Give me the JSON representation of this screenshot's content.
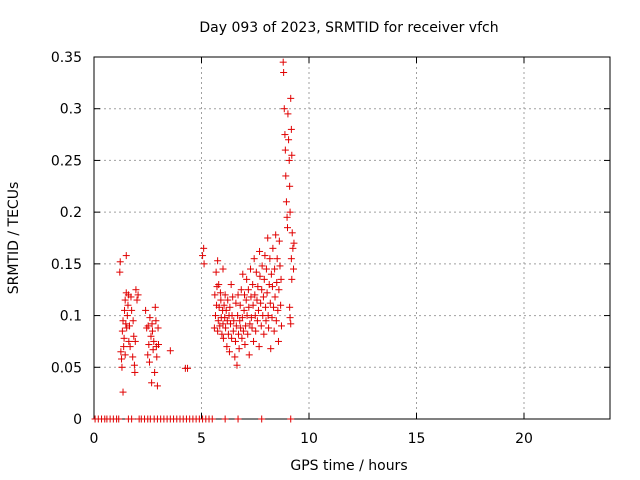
{
  "chart_data": {
    "type": "scatter",
    "title": "Day 093 of 2023, SRMTID for receiver vfch",
    "xlabel": "GPS time / hours",
    "ylabel": "SRMTID / TECUs",
    "xlim": [
      0,
      24
    ],
    "ylim": [
      0,
      0.35
    ],
    "xticks": [
      "0",
      "5",
      "10",
      "15",
      "20"
    ],
    "yticks": [
      "0",
      "0.05",
      "0.1",
      "0.15",
      "0.2",
      "0.25",
      "0.3",
      "0.35"
    ],
    "grid": true,
    "marker": "plus",
    "color": "#e00000",
    "points": [
      [
        0.05,
        0
      ],
      [
        0.2,
        0
      ],
      [
        0.35,
        0
      ],
      [
        0.5,
        0
      ],
      [
        0.6,
        0
      ],
      [
        0.75,
        0
      ],
      [
        0.9,
        0
      ],
      [
        1.05,
        0
      ],
      [
        1.15,
        0
      ],
      [
        1.2,
        0.142
      ],
      [
        1.22,
        0.152
      ],
      [
        1.25,
        0.065
      ],
      [
        1.28,
        0.058
      ],
      [
        1.3,
        0.05
      ],
      [
        1.32,
        0.085
      ],
      [
        1.35,
        0.095
      ],
      [
        1.35,
        0.026
      ],
      [
        1.38,
        0.07
      ],
      [
        1.4,
        0.078
      ],
      [
        1.42,
        0.105
      ],
      [
        1.45,
        0.115
      ],
      [
        1.45,
        0.062
      ],
      [
        1.48,
        0.092
      ],
      [
        1.5,
        0.158
      ],
      [
        1.5,
        0.122
      ],
      [
        1.52,
        0.088
      ],
      [
        1.55,
        0.1
      ],
      [
        1.58,
        0.11
      ],
      [
        1.6,
        0.12
      ],
      [
        1.62,
        0.075
      ],
      [
        1.65,
        0.09
      ],
      [
        1.68,
        0.07
      ],
      [
        1.72,
        0.118
      ],
      [
        1.75,
        0.105
      ],
      [
        1.8,
        0.06
      ],
      [
        1.82,
        0.095
      ],
      [
        1.85,
        0.08
      ],
      [
        1.88,
        0.052
      ],
      [
        1.9,
        0.045
      ],
      [
        1.92,
        0.075
      ],
      [
        1.95,
        0.125
      ],
      [
        2.0,
        0.115
      ],
      [
        2.05,
        0.12
      ],
      [
        1.6,
        0
      ],
      [
        1.75,
        0
      ],
      [
        2.1,
        0
      ],
      [
        2.2,
        0
      ],
      [
        2.35,
        0
      ],
      [
        2.5,
        0
      ],
      [
        2.62,
        0
      ],
      [
        2.8,
        0
      ],
      [
        2.95,
        0
      ],
      [
        2.4,
        0.105
      ],
      [
        2.45,
        0.088
      ],
      [
        2.5,
        0.062
      ],
      [
        2.52,
        0.09
      ],
      [
        2.55,
        0.072
      ],
      [
        2.58,
        0.055
      ],
      [
        2.6,
        0.098
      ],
      [
        2.65,
        0.08
      ],
      [
        2.68,
        0.035
      ],
      [
        2.7,
        0.092
      ],
      [
        2.72,
        0.085
      ],
      [
        2.75,
        0.067
      ],
      [
        2.78,
        0.075
      ],
      [
        2.82,
        0.045
      ],
      [
        2.85,
        0.108
      ],
      [
        2.88,
        0.095
      ],
      [
        2.9,
        0.07
      ],
      [
        2.92,
        0.06
      ],
      [
        2.95,
        0.032
      ],
      [
        2.98,
        0.088
      ],
      [
        3.0,
        0.072
      ],
      [
        3.1,
        0
      ],
      [
        3.25,
        0
      ],
      [
        3.4,
        0
      ],
      [
        3.55,
        0
      ],
      [
        3.7,
        0
      ],
      [
        3.85,
        0
      ],
      [
        4.0,
        0
      ],
      [
        4.15,
        0
      ],
      [
        4.3,
        0
      ],
      [
        4.45,
        0
      ],
      [
        4.6,
        0
      ],
      [
        4.75,
        0
      ],
      [
        4.9,
        0
      ],
      [
        5.05,
        0
      ],
      [
        5.2,
        0
      ],
      [
        5.35,
        0
      ],
      [
        5.5,
        0
      ],
      [
        3.55,
        0.066
      ],
      [
        4.25,
        0.049
      ],
      [
        4.35,
        0.049
      ],
      [
        5.05,
        0.158
      ],
      [
        5.1,
        0.165
      ],
      [
        5.12,
        0.15
      ],
      [
        5.6,
        0.088
      ],
      [
        5.62,
        0.12
      ],
      [
        5.65,
        0.1
      ],
      [
        5.68,
        0.142
      ],
      [
        5.7,
        0.11
      ],
      [
        5.72,
        0.128
      ],
      [
        5.75,
        0.085
      ],
      [
        5.75,
        0.153
      ],
      [
        5.78,
        0.095
      ],
      [
        5.8,
        0.13
      ],
      [
        5.82,
        0.108
      ],
      [
        5.85,
        0.09
      ],
      [
        5.88,
        0.122
      ],
      [
        5.9,
        0.115
      ],
      [
        5.92,
        0.098
      ],
      [
        5.95,
        0.082
      ],
      [
        5.98,
        0.105
      ],
      [
        6.0,
        0.092
      ],
      [
        6.0,
        0.145
      ],
      [
        6.02,
        0.078
      ],
      [
        6.05,
        0.11
      ],
      [
        6.08,
        0.098
      ],
      [
        6.1,
        0.12
      ],
      [
        6.12,
        0.088
      ],
      [
        6.15,
        0.105
      ],
      [
        6.18,
        0.07
      ],
      [
        6.2,
        0.095
      ],
      [
        6.22,
        0.115
      ],
      [
        6.25,
        0.082
      ],
      [
        6.28,
        0.1
      ],
      [
        6.3,
        0.065
      ],
      [
        6.32,
        0.108
      ],
      [
        6.35,
        0.092
      ],
      [
        6.38,
        0.13
      ],
      [
        6.4,
        0.078
      ],
      [
        6.42,
        0.1
      ],
      [
        6.45,
        0.118
      ],
      [
        6.48,
        0.085
      ],
      [
        6.5,
        0.095
      ],
      [
        6.55,
        0.06
      ],
      [
        6.58,
        0.075
      ],
      [
        6.6,
        0.112
      ],
      [
        6.62,
        0.09
      ],
      [
        6.65,
        0.052
      ],
      [
        6.68,
        0.1
      ],
      [
        6.7,
        0.12
      ],
      [
        6.72,
        0.082
      ],
      [
        6.75,
        0.068
      ],
      [
        6.78,
        0.095
      ],
      [
        6.8,
        0.11
      ],
      [
        6.82,
        0.088
      ],
      [
        6.85,
        0.125
      ],
      [
        6.88,
        0.078
      ],
      [
        6.9,
        0.098
      ],
      [
        6.92,
        0.14
      ],
      [
        6.95,
        0.085
      ],
      [
        6.98,
        0.105
      ],
      [
        7.0,
        0.12
      ],
      [
        7.02,
        0.072
      ],
      [
        7.05,
        0.09
      ],
      [
        7.08,
        0.115
      ],
      [
        7.1,
        0.135
      ],
      [
        7.12,
        0.1
      ],
      [
        7.15,
        0.082
      ],
      [
        7.18,
        0.125
      ],
      [
        7.2,
        0.108
      ],
      [
        7.22,
        0.062
      ],
      [
        7.25,
        0.092
      ],
      [
        7.28,
        0.145
      ],
      [
        7.3,
        0.118
      ],
      [
        7.32,
        0.098
      ],
      [
        7.35,
        0.088
      ],
      [
        7.38,
        0.13
      ],
      [
        7.4,
        0.11
      ],
      [
        7.42,
        0.075
      ],
      [
        7.45,
        0.155
      ],
      [
        7.48,
        0.12
      ],
      [
        7.5,
        0.1
      ],
      [
        7.52,
        0.085
      ],
      [
        7.55,
        0.142
      ],
      [
        7.58,
        0.115
      ],
      [
        7.6,
        0.095
      ],
      [
        7.62,
        0.128
      ],
      [
        7.65,
        0.105
      ],
      [
        7.68,
        0.07
      ],
      [
        7.7,
        0.162
      ],
      [
        7.72,
        0.138
      ],
      [
        7.75,
        0.112
      ],
      [
        7.78,
        0.09
      ],
      [
        7.8,
        0.125
      ],
      [
        7.82,
        0.148
      ],
      [
        7.85,
        0.1
      ],
      [
        7.88,
        0.118
      ],
      [
        7.9,
        0.082
      ],
      [
        7.92,
        0.135
      ],
      [
        7.95,
        0.158
      ],
      [
        7.98,
        0.108
      ],
      [
        8.0,
        0.095
      ],
      [
        8.02,
        0.145
      ],
      [
        8.05,
        0.122
      ],
      [
        8.08,
        0.175
      ],
      [
        8.1,
        0.1
      ],
      [
        8.12,
        0.088
      ],
      [
        8.15,
        0.13
      ],
      [
        8.18,
        0.155
      ],
      [
        8.2,
        0.112
      ],
      [
        8.22,
        0.068
      ],
      [
        8.25,
        0.14
      ],
      [
        8.28,
        0.098
      ],
      [
        8.3,
        0.128
      ],
      [
        8.32,
        0.165
      ],
      [
        8.35,
        0.108
      ],
      [
        8.38,
        0.085
      ],
      [
        8.4,
        0.145
      ],
      [
        8.42,
        0.118
      ],
      [
        8.45,
        0.178
      ],
      [
        8.48,
        0.095
      ],
      [
        8.5,
        0.132
      ],
      [
        8.52,
        0.155
      ],
      [
        8.55,
        0.105
      ],
      [
        8.58,
        0.075
      ],
      [
        8.6,
        0.125
      ],
      [
        8.62,
        0.172
      ],
      [
        8.65,
        0.148
      ],
      [
        8.68,
        0.11
      ],
      [
        8.7,
        0.135
      ],
      [
        8.72,
        0.09
      ],
      [
        8.8,
        0.345
      ],
      [
        8.82,
        0.335
      ],
      [
        8.85,
        0.3
      ],
      [
        8.88,
        0.275
      ],
      [
        8.9,
        0.26
      ],
      [
        8.92,
        0.235
      ],
      [
        8.95,
        0.21
      ],
      [
        8.98,
        0.195
      ],
      [
        9.0,
        0.185
      ],
      [
        9.02,
        0.295
      ],
      [
        9.05,
        0.27
      ],
      [
        9.08,
        0.25
      ],
      [
        9.1,
        0.225
      ],
      [
        9.12,
        0.2
      ],
      [
        9.15,
        0.31
      ],
      [
        9.18,
        0.28
      ],
      [
        9.2,
        0.255
      ],
      [
        9.22,
        0.18
      ],
      [
        9.25,
        0.165
      ],
      [
        9.28,
        0.145
      ],
      [
        9.3,
        0.17
      ],
      [
        9.1,
        0.108
      ],
      [
        9.12,
        0.098
      ],
      [
        9.15,
        0.092
      ],
      [
        9.18,
        0.155
      ],
      [
        9.2,
        0.135
      ],
      [
        6.1,
        0
      ],
      [
        6.7,
        0
      ],
      [
        7.8,
        0
      ],
      [
        9.15,
        0
      ]
    ]
  }
}
